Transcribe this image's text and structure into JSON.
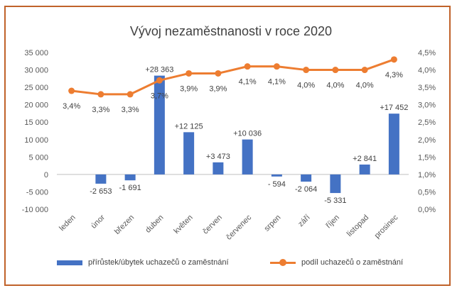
{
  "chart_data": {
    "type": "bar+line",
    "title": "Vývoj nezaměstnanosti v roce 2020",
    "categories": [
      "leden",
      "únor",
      "březen",
      "duben",
      "květen",
      "červen",
      "červenec",
      "srpen",
      "září",
      "říjen",
      "listopad",
      "prosinec"
    ],
    "series": [
      {
        "name": "přírůstek/úbytek uchazečů o zaměstnání",
        "type": "bar",
        "axis": "left",
        "color": "#4472c4",
        "values": [
          null,
          -2653,
          -1691,
          28363,
          12125,
          3473,
          10036,
          -594,
          -2064,
          -5331,
          2841,
          17452
        ],
        "labels": [
          "",
          "-2 653",
          "-1 691",
          "+28 363",
          "+12 125",
          "+3 473",
          "+10 036",
          "- 594",
          "-2 064",
          "-5 331",
          "+2 841",
          "+17 452"
        ]
      },
      {
        "name": "podíl uchazečů o zaměstnání",
        "type": "line",
        "axis": "right",
        "color": "#ed7d31",
        "values": [
          3.4,
          3.3,
          3.3,
          3.7,
          3.9,
          3.9,
          4.1,
          4.1,
          4.0,
          4.0,
          4.0,
          4.3
        ],
        "labels": [
          "3,4%",
          "3,3%",
          "3,3%",
          "3,7%",
          "3,9%",
          "3,9%",
          "4,1%",
          "4,1%",
          "4,0%",
          "4,0%",
          "4,0%",
          "4,3%"
        ]
      }
    ],
    "ylim_left": [
      -10000,
      35000
    ],
    "ylim_right": [
      0,
      4.5
    ],
    "y_left_ticks": [
      "-10 000",
      "-5 000",
      "0",
      "5 000",
      "10 000",
      "15 000",
      "20 000",
      "25 000",
      "30 000",
      "35 000"
    ],
    "y_right_ticks": [
      "0,0%",
      "0,5%",
      "1,0%",
      "1,5%",
      "2,0%",
      "2,5%",
      "3,0%",
      "3,5%",
      "4,0%",
      "4,5%"
    ],
    "grid": false,
    "legend_position": "bottom"
  }
}
